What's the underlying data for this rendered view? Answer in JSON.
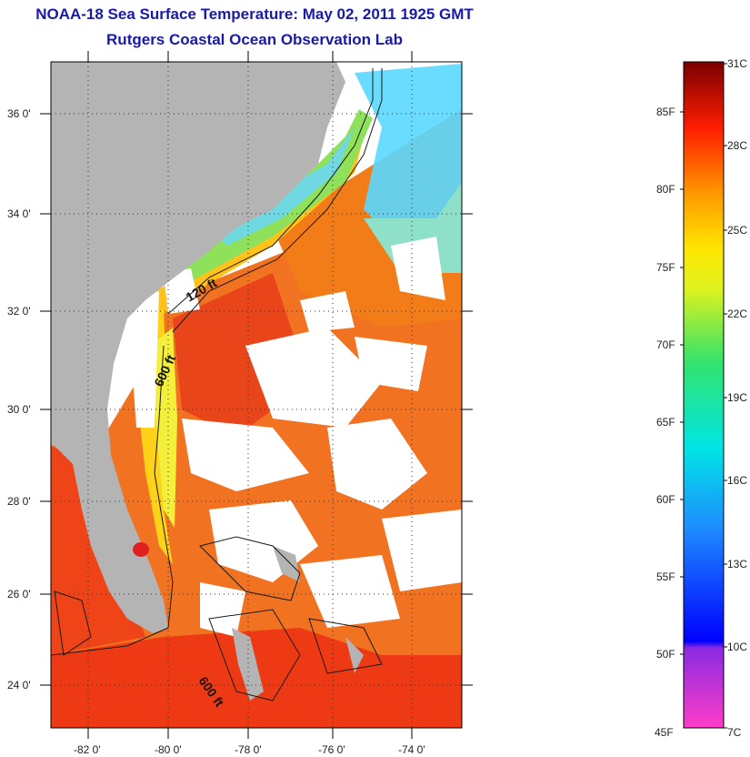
{
  "title_line1": "NOAA-18 Sea Surface Temperature:  May 02, 2011 1925 GMT",
  "title_line2": "Rutgers Coastal Ocean Observation Lab",
  "map": {
    "lat_labels": [
      "36 0'",
      "34 0'",
      "32 0'",
      "30 0'",
      "28 0'",
      "26 0'",
      "24 0'"
    ],
    "lon_labels": [
      "-82 0'",
      "-80 0'",
      "-78 0'",
      "-76 0'",
      "-74 0'"
    ],
    "contour_labels": [
      "120 ft",
      "600 ft",
      "600 ft"
    ]
  },
  "colorbar": {
    "fahrenheit_labels": [
      "85F",
      "80F",
      "75F",
      "70F",
      "65F",
      "60F",
      "55F",
      "50F",
      "45F"
    ],
    "celsius_labels": [
      "31C",
      "28C",
      "25C",
      "22C",
      "19C",
      "16C",
      "13C",
      "10C",
      "7C"
    ]
  },
  "colors": {
    "title": "#1a1aa6",
    "land": "#b4b4b4",
    "warm_water": "#f04a10",
    "mid_water": "#ffc21a",
    "cool_water": "#7be05a",
    "cold_water": "#38e0e0"
  }
}
